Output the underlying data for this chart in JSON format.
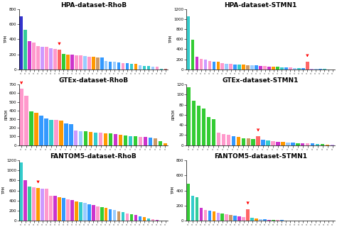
{
  "panels": [
    {
      "title": "HPA-dataset-RhoB",
      "ylabel": "TPM",
      "ylim": [
        0,
        800
      ],
      "yticks": [
        0,
        200,
        400,
        600,
        800
      ],
      "arrow_idx": 9,
      "n_bars": 35,
      "bar_heights": [
        700,
        520,
        370,
        360,
        310,
        300,
        295,
        285,
        275,
        260,
        205,
        200,
        195,
        188,
        183,
        178,
        172,
        168,
        163,
        158,
        108,
        103,
        98,
        92,
        88,
        83,
        78,
        72,
        53,
        48,
        43,
        38,
        33,
        13,
        8
      ],
      "bar_colors": [
        "#3333cc",
        "#33cc99",
        "#cc33cc",
        "#ff99cc",
        "#ff99cc",
        "#cc99ff",
        "#ff99cc",
        "#cc99ff",
        "#ff99cc",
        "#ff6666",
        "#33cc33",
        "#ff9900",
        "#cc33cc",
        "#ff99cc",
        "#ff99cc",
        "#99ccff",
        "#ff99cc",
        "#ff9900",
        "#cc9966",
        "#3399ff",
        "#99ccff",
        "#3399ff",
        "#99ccff",
        "#3399ff",
        "#ff99cc",
        "#3399ff",
        "#33cccc",
        "#ff9900",
        "#99ccff",
        "#33cccc",
        "#33cccc",
        "#99ccff",
        "#ff99cc",
        "#33cccc",
        "#cc6666"
      ]
    },
    {
      "title": "HPA-dataset-STMN1",
      "ylabel": "TPM",
      "ylim": [
        0,
        1200
      ],
      "yticks": [
        0,
        200,
        400,
        600,
        800,
        1000,
        1200
      ],
      "arrow_idx": 28,
      "n_bars": 35,
      "bar_heights": [
        1050,
        590,
        255,
        215,
        195,
        162,
        157,
        147,
        127,
        117,
        107,
        102,
        98,
        92,
        88,
        83,
        78,
        72,
        68,
        62,
        57,
        53,
        48,
        43,
        38,
        33,
        28,
        23,
        155,
        18,
        13,
        10,
        8,
        5,
        3
      ],
      "bar_colors": [
        "#33cccc",
        "#33cc33",
        "#cc33cc",
        "#ff99cc",
        "#cc99ff",
        "#ff99cc",
        "#3399ff",
        "#ff9900",
        "#ff99cc",
        "#99ccff",
        "#ff99cc",
        "#3399ff",
        "#33cccc",
        "#ff9900",
        "#cc9966",
        "#99ccff",
        "#3399ff",
        "#cc33cc",
        "#ff99cc",
        "#cc33cc",
        "#ff9900",
        "#33cc33",
        "#33cccc",
        "#3399ff",
        "#ff99cc",
        "#99ccff",
        "#33cccc",
        "#3399ff",
        "#ff6666",
        "#cc99ff",
        "#99ccff",
        "#3399ff",
        "#33cccc",
        "#cc33cc",
        "#ff99cc"
      ]
    },
    {
      "title": "GTEx-dataset-RhoB",
      "ylabel": "RPKM",
      "ylim": [
        0,
        700
      ],
      "yticks": [
        0,
        100,
        200,
        300,
        400,
        500,
        600,
        700
      ],
      "arrow_idx": 0,
      "n_bars": 30,
      "bar_heights": [
        650,
        570,
        390,
        375,
        345,
        305,
        295,
        290,
        285,
        248,
        242,
        168,
        162,
        157,
        152,
        147,
        142,
        137,
        132,
        127,
        118,
        112,
        107,
        102,
        97,
        92,
        87,
        82,
        48,
        22
      ],
      "bar_colors": [
        "#ff99cc",
        "#ff99cc",
        "#33cc33",
        "#ff9900",
        "#3399ff",
        "#3399ff",
        "#33cccc",
        "#ff99cc",
        "#ff9900",
        "#3399ff",
        "#3399ff",
        "#cc99ff",
        "#99ccff",
        "#33cc33",
        "#ff9900",
        "#33cccc",
        "#ff99cc",
        "#ff9900",
        "#33cc33",
        "#cc33cc",
        "#ff9900",
        "#33cc33",
        "#33cccc",
        "#33cc33",
        "#ff99cc",
        "#cc33cc",
        "#3399ff",
        "#cc9966",
        "#33cc33",
        "#ff9900"
      ]
    },
    {
      "title": "GTEx-dataset-STMN1",
      "ylabel": "RPKM",
      "ylim": [
        0,
        120
      ],
      "yticks": [
        0,
        20,
        40,
        60,
        80,
        100,
        120
      ],
      "arrow_idx": 14,
      "n_bars": 30,
      "bar_heights": [
        115,
        88,
        78,
        72,
        55,
        52,
        25,
        22,
        20,
        18,
        16,
        14,
        13,
        12,
        18,
        10,
        9,
        8,
        7,
        6,
        5,
        5,
        4,
        4,
        3,
        3,
        2,
        2,
        1,
        1
      ],
      "bar_colors": [
        "#33cc33",
        "#33cc33",
        "#33cc33",
        "#33cc33",
        "#33cc33",
        "#33cc33",
        "#ff99cc",
        "#ff99cc",
        "#ff99cc",
        "#3399ff",
        "#ff9900",
        "#33cc33",
        "#cc9966",
        "#33cc33",
        "#ff6666",
        "#3399ff",
        "#33cccc",
        "#ff99cc",
        "#cc33cc",
        "#ff9900",
        "#99ccff",
        "#3399ff",
        "#33cc33",
        "#cc33cc",
        "#ff99cc",
        "#3399ff",
        "#33cccc",
        "#33cc33",
        "#ff9900",
        "#cc99ff"
      ]
    },
    {
      "title": "FANTOM5-dataset-RhoB",
      "ylabel": "TPM",
      "ylim": [
        0,
        1200
      ],
      "yticks": [
        0,
        200,
        400,
        600,
        800,
        1000,
        1200
      ],
      "arrow_idx": 4,
      "n_bars": 35,
      "bar_heights": [
        1150,
        800,
        680,
        660,
        650,
        640,
        630,
        500,
        490,
        470,
        450,
        430,
        410,
        390,
        370,
        350,
        330,
        310,
        290,
        270,
        250,
        230,
        210,
        190,
        170,
        150,
        130,
        110,
        90,
        70,
        50,
        30,
        20,
        10,
        5
      ],
      "bar_colors": [
        "#33cccc",
        "#cc33cc",
        "#33cc99",
        "#ff99cc",
        "#ff9900",
        "#cc99ff",
        "#ff99cc",
        "#ff99cc",
        "#cc33cc",
        "#ff9900",
        "#3399ff",
        "#ff99cc",
        "#cc33cc",
        "#ff9900",
        "#33cccc",
        "#99ccff",
        "#3399ff",
        "#cc33cc",
        "#ff99cc",
        "#33cc33",
        "#ff9900",
        "#3399ff",
        "#99ccff",
        "#cc9966",
        "#33cccc",
        "#ff99cc",
        "#33cc33",
        "#cc33cc",
        "#3399ff",
        "#ff9900",
        "#33cccc",
        "#ff99cc",
        "#cc33cc",
        "#33cc33",
        "#3399ff"
      ]
    },
    {
      "title": "FANTOM5-dataset-STMN1",
      "ylabel": "TPM",
      "ylim": [
        0,
        800
      ],
      "yticks": [
        0,
        200,
        400,
        600,
        800
      ],
      "arrow_idx": 14,
      "n_bars": 35,
      "bar_heights": [
        490,
        330,
        315,
        175,
        145,
        130,
        120,
        108,
        98,
        88,
        78,
        68,
        58,
        48,
        155,
        38,
        30,
        25,
        20,
        15,
        12,
        10,
        8,
        6,
        5,
        4,
        3,
        3,
        2,
        2,
        1,
        1,
        1,
        0,
        0
      ],
      "bar_colors": [
        "#33cc33",
        "#33cccc",
        "#33cc99",
        "#cc33cc",
        "#ff99cc",
        "#3399ff",
        "#ff9900",
        "#cc99ff",
        "#33cc33",
        "#ff99cc",
        "#cc9966",
        "#3399ff",
        "#cc33cc",
        "#ff99cc",
        "#ff6666",
        "#33cccc",
        "#ff9900",
        "#99ccff",
        "#3399ff",
        "#cc33cc",
        "#33cc33",
        "#ff99cc",
        "#3399ff",
        "#33cccc",
        "#ff99cc",
        "#cc33cc",
        "#ff9900",
        "#33cc33",
        "#99ccff",
        "#3399ff",
        "#33cccc",
        "#cc9966",
        "#ff99cc",
        "#33cc33",
        "#cc33cc"
      ]
    }
  ],
  "fig_bg": "#ffffff",
  "title_fontsize": 6.5,
  "tick_fontsize": 3,
  "ylabel_fontsize": 4
}
